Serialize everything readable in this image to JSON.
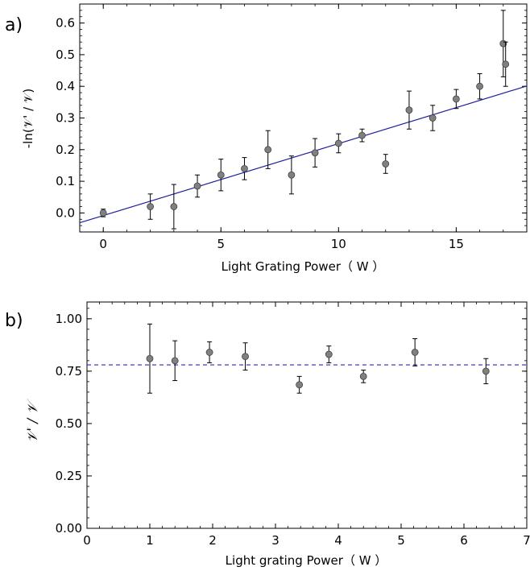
{
  "chart_data": [
    {
      "panel_label": "a)",
      "type": "scatter",
      "xlabel": "Light Grating Power（ W ）",
      "ylabel": "-ln(𝒱' / 𝒱)",
      "xlim": [
        -1,
        18
      ],
      "ylim": [
        -0.06,
        0.66
      ],
      "xticks": [
        0,
        5,
        10,
        15
      ],
      "yticks": [
        0.0,
        0.1,
        0.2,
        0.3,
        0.4,
        0.5,
        0.6
      ],
      "grid": false,
      "legend": "none",
      "series": [
        {
          "kind": "points-with-errorbars",
          "x": [
            0,
            2,
            3,
            4,
            5,
            6,
            7,
            8,
            9,
            10,
            11,
            12,
            13,
            14,
            15,
            16,
            17,
            17.1
          ],
          "y": [
            0.0,
            0.02,
            0.02,
            0.085,
            0.12,
            0.14,
            0.2,
            0.12,
            0.19,
            0.22,
            0.245,
            0.155,
            0.325,
            0.3,
            0.36,
            0.4,
            0.535,
            0.47
          ],
          "err": [
            0.012,
            0.04,
            0.07,
            0.035,
            0.05,
            0.035,
            0.06,
            0.06,
            0.045,
            0.03,
            0.02,
            0.03,
            0.06,
            0.04,
            0.03,
            0.04,
            0.105,
            0.07
          ]
        },
        {
          "kind": "fit-line",
          "x": [
            -1,
            18
          ],
          "y": [
            -0.031,
            0.401
          ]
        }
      ],
      "colors": {
        "points": "#808080",
        "point_edge": "#404040",
        "errorbar": "#000000",
        "fit": "#1f1fa0"
      }
    },
    {
      "panel_label": "b)",
      "type": "scatter",
      "xlabel": "Light grating Power（ W ）",
      "ylabel": "𝒱' / 𝒱",
      "xlim": [
        0,
        7
      ],
      "ylim": [
        0.0,
        1.08
      ],
      "xticks": [
        0,
        1,
        2,
        3,
        4,
        5,
        6,
        7
      ],
      "yticks": [
        "0.00",
        "0.25",
        "0.50",
        "0.75",
        "1.00"
      ],
      "grid": false,
      "legend": "none",
      "series": [
        {
          "kind": "points-with-errorbars",
          "x": [
            1.0,
            1.4,
            1.95,
            2.52,
            3.38,
            3.85,
            4.4,
            5.22,
            6.35
          ],
          "y": [
            0.81,
            0.8,
            0.84,
            0.82,
            0.685,
            0.83,
            0.725,
            0.84,
            0.75
          ],
          "err": [
            0.165,
            0.095,
            0.05,
            0.065,
            0.04,
            0.04,
            0.03,
            0.065,
            0.06
          ]
        },
        {
          "kind": "dashed-line",
          "y": 0.78
        }
      ],
      "colors": {
        "points": "#808080",
        "point_edge": "#404040",
        "errorbar": "#000000",
        "reference": "#2a2ab0"
      }
    }
  ]
}
